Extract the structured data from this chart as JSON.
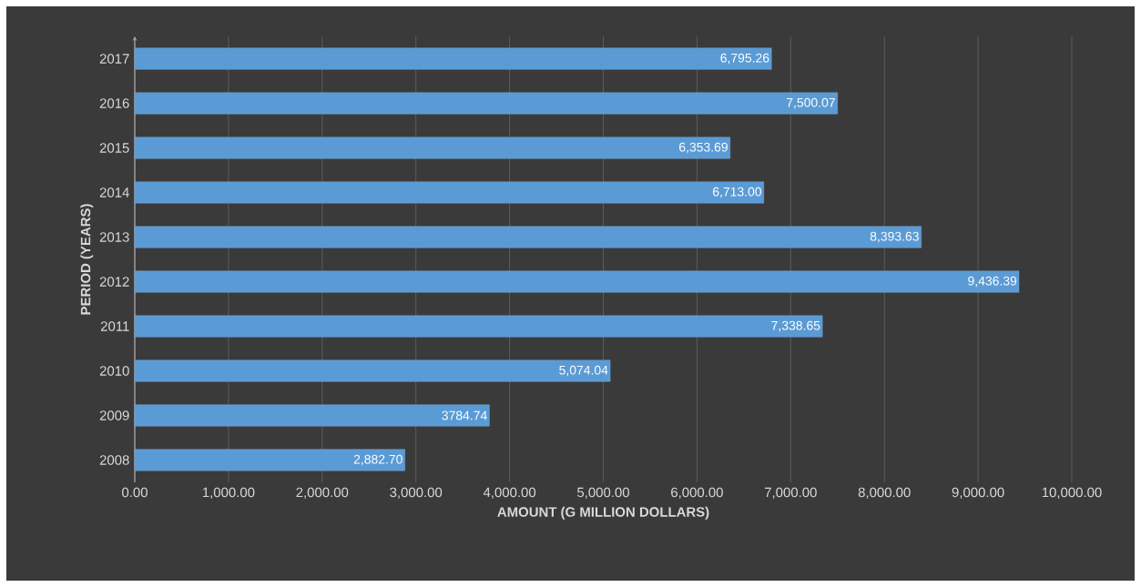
{
  "chart_data": {
    "type": "bar",
    "orientation": "horizontal",
    "xlabel": "AMOUNT (G MILLION DOLLARS)",
    "ylabel": "PERIOD (YEARS)",
    "categories": [
      "2017",
      "2016",
      "2015",
      "2014",
      "2013",
      "2012",
      "2011",
      "2010",
      "2009",
      "2008"
    ],
    "values": [
      6795.26,
      7500.07,
      6353.69,
      6713.0,
      8393.63,
      9436.39,
      7338.65,
      5074.04,
      3784.74,
      2882.7
    ],
    "value_labels": [
      "6,795.26",
      "7,500.07",
      "6,353.69",
      "6,713.00",
      "8,393.63",
      "9,436.39",
      "7,338.65",
      "5,074.04",
      "3784.74",
      "2,882.70"
    ],
    "color": "#5b9bd5",
    "xlim": [
      0,
      10000
    ],
    "xticks": [
      {
        "value": 0,
        "label": "0.00"
      },
      {
        "value": 1000,
        "label": "1,000.00"
      },
      {
        "value": 2000,
        "label": "2,000.00"
      },
      {
        "value": 3000,
        "label": "3,000.00"
      },
      {
        "value": 4000,
        "label": "4,000.00"
      },
      {
        "value": 5000,
        "label": "5,000.00"
      },
      {
        "value": 6000,
        "label": "6,000.00"
      },
      {
        "value": 7000,
        "label": "7,000.00"
      },
      {
        "value": 8000,
        "label": "8,000.00"
      },
      {
        "value": 9000,
        "label": "9,000.00"
      },
      {
        "value": 10000,
        "label": "10,000.00"
      }
    ],
    "grid": "x"
  }
}
